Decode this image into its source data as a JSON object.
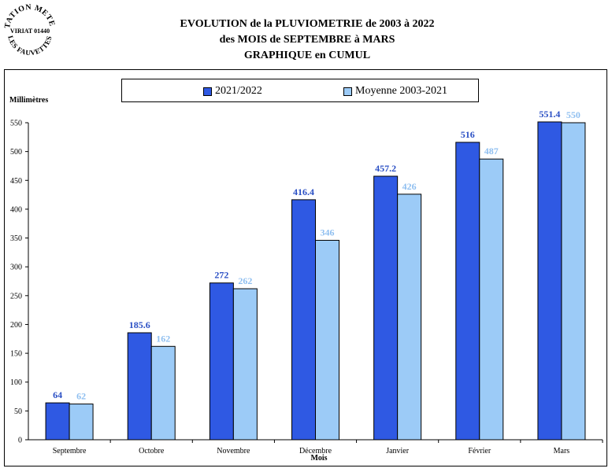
{
  "logo": {
    "line1": "STATION METEO",
    "line2": "VIRIAT 01440",
    "line3": "LES FAUVETTES"
  },
  "title_lines": [
    "EVOLUTION de la PLUVIOMETRIE de 2003 à 2022",
    "des MOIS de SEPTEMBRE à MARS",
    "GRAPHIQUE en CUMUL"
  ],
  "colors": {
    "series1": "#2f59e3",
    "series2": "#9ccbf7",
    "label1": "#2a4fc4",
    "label2": "#8fbff0"
  },
  "chart_data": {
    "type": "bar",
    "title": "EVOLUTION de la PLUVIOMETRIE de 2003 à 2022 des MOIS de SEPTEMBRE à MARS GRAPHIQUE en CUMUL",
    "xlabel": "Mois",
    "ylabel": "Millimètres",
    "ylim": [
      0,
      550
    ],
    "yticks": [
      0,
      50,
      100,
      150,
      200,
      250,
      300,
      350,
      400,
      450,
      500,
      550
    ],
    "categories": [
      "Septembre",
      "Octobre",
      "Novembre",
      "Décembre",
      "Janvier",
      "Février",
      "Mars"
    ],
    "series": [
      {
        "name": "2021/2022",
        "values": [
          64,
          185.6,
          272,
          416.4,
          457.2,
          516,
          551.4
        ]
      },
      {
        "name": "Moyenne 2003-2021",
        "values": [
          62,
          162,
          262,
          346,
          426,
          487,
          550
        ]
      }
    ],
    "legend_position": "top",
    "grid": false
  }
}
